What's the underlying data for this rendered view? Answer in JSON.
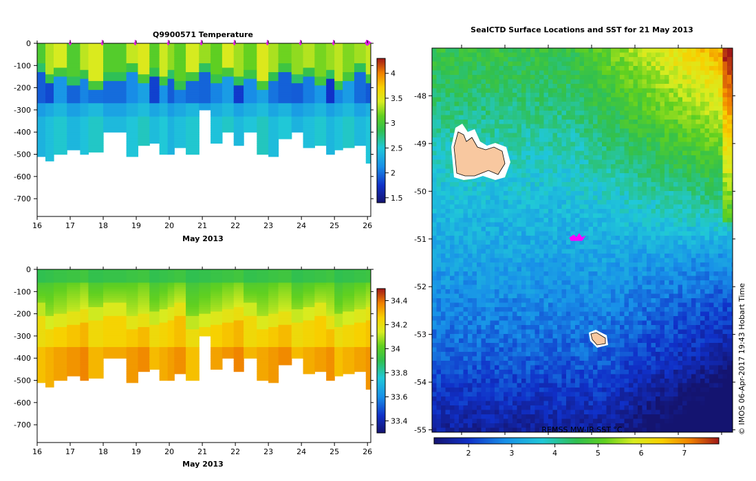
{
  "chart_data": [
    {
      "type": "heatmap",
      "title": "Q9900571  Temperature",
      "xlabel": "May 2013",
      "x_ticks": [
        "16",
        "17",
        "18",
        "19",
        "20",
        "21",
        "22",
        "23",
        "24",
        "25",
        "26"
      ],
      "xlim": [
        16,
        26.1
      ],
      "y_ticks": [
        "0",
        "-100",
        "-200",
        "-300",
        "-400",
        "-500",
        "-600",
        "-700"
      ],
      "ylim": [
        -780,
        0
      ],
      "colorbar_ticks": [
        "4",
        "3.5",
        "3",
        "2.5",
        "2",
        "1.5"
      ],
      "colorbar_range": [
        1.4,
        4.3
      ],
      "colorbar_orientation": "vertical",
      "marker_color": "#e020e0",
      "markers_x": [
        17.0,
        17.97,
        18.97,
        19.97,
        20.97,
        21.97,
        22.97,
        23.97,
        24.97,
        25.97
      ],
      "profiles": [
        {
          "x": 16.0,
          "w": 0.25,
          "bottom": -505
        },
        {
          "x": 16.25,
          "w": 0.25,
          "bottom": -530
        },
        {
          "x": 16.5,
          "w": 0.4,
          "bottom": -495
        },
        {
          "x": 16.9,
          "w": 0.4,
          "bottom": -480
        },
        {
          "x": 17.3,
          "w": 0.25,
          "bottom": -495
        },
        {
          "x": 17.55,
          "w": 0.45,
          "bottom": -490
        },
        {
          "x": 18.0,
          "w": 0.7,
          "bottom": -400
        },
        {
          "x": 18.7,
          "w": 0.35,
          "bottom": -505
        },
        {
          "x": 19.05,
          "w": 0.35,
          "bottom": -460
        },
        {
          "x": 19.4,
          "w": 0.3,
          "bottom": -450
        },
        {
          "x": 19.7,
          "w": 0.25,
          "bottom": -500
        },
        {
          "x": 19.95,
          "w": 0.2,
          "bottom": -495
        },
        {
          "x": 20.15,
          "w": 0.35,
          "bottom": -470
        },
        {
          "x": 20.5,
          "w": 0.4,
          "bottom": -500
        },
        {
          "x": 20.9,
          "w": 0.35,
          "bottom": -300
        },
        {
          "x": 21.25,
          "w": 0.35,
          "bottom": -450
        },
        {
          "x": 21.6,
          "w": 0.35,
          "bottom": -400
        },
        {
          "x": 21.95,
          "w": 0.3,
          "bottom": -460
        },
        {
          "x": 22.25,
          "w": 0.4,
          "bottom": -400
        },
        {
          "x": 22.65,
          "w": 0.35,
          "bottom": -500
        },
        {
          "x": 23.0,
          "w": 0.3,
          "bottom": -510
        },
        {
          "x": 23.3,
          "w": 0.4,
          "bottom": -430
        },
        {
          "x": 23.7,
          "w": 0.35,
          "bottom": -400
        },
        {
          "x": 24.05,
          "w": 0.35,
          "bottom": -470
        },
        {
          "x": 24.4,
          "w": 0.35,
          "bottom": -460
        },
        {
          "x": 24.75,
          "w": 0.25,
          "bottom": -495
        },
        {
          "x": 25.0,
          "w": 0.25,
          "bottom": -480
        },
        {
          "x": 25.25,
          "w": 0.35,
          "bottom": -470
        },
        {
          "x": 25.6,
          "w": 0.35,
          "bottom": -460
        },
        {
          "x": 25.95,
          "w": 0.15,
          "bottom": -535
        }
      ]
    },
    {
      "type": "heatmap",
      "title": "",
      "xlabel": "May 2013",
      "x_ticks": [
        "16",
        "17",
        "18",
        "19",
        "20",
        "21",
        "22",
        "23",
        "24",
        "25",
        "26"
      ],
      "xlim": [
        16,
        26.1
      ],
      "y_ticks": [
        "0",
        "-100",
        "-200",
        "-300",
        "-400",
        "-500",
        "-600",
        "-700"
      ],
      "ylim": [
        -780,
        0
      ],
      "colorbar_ticks": [
        "34.4",
        "34.2",
        "34",
        "33.8",
        "33.6",
        "33.4"
      ],
      "colorbar_range": [
        33.3,
        34.5
      ],
      "colorbar_orientation": "vertical"
    },
    {
      "type": "heatmap",
      "title": "SealCTD Surface Locations and SST for 21 May 2013",
      "y_ticks": [
        "-48",
        "-49",
        "-50",
        "-51",
        "-52",
        "-53",
        "-54",
        "-55"
      ],
      "ylim": [
        -55.05,
        -47.0
      ],
      "colorbar_ticks": [
        "2",
        "3",
        "4",
        "5",
        "6",
        "7"
      ],
      "colorbar_range": [
        1.2,
        7.8
      ],
      "colorbar_orientation": "horizontal",
      "colorbar_label": "REMSS MW-IR SST °C",
      "side_label": "© IMOS 06-Apr-2017 19:43 Hobart Time",
      "track_color": "#ff00ff",
      "track_location": [
        -50.95
      ]
    }
  ]
}
